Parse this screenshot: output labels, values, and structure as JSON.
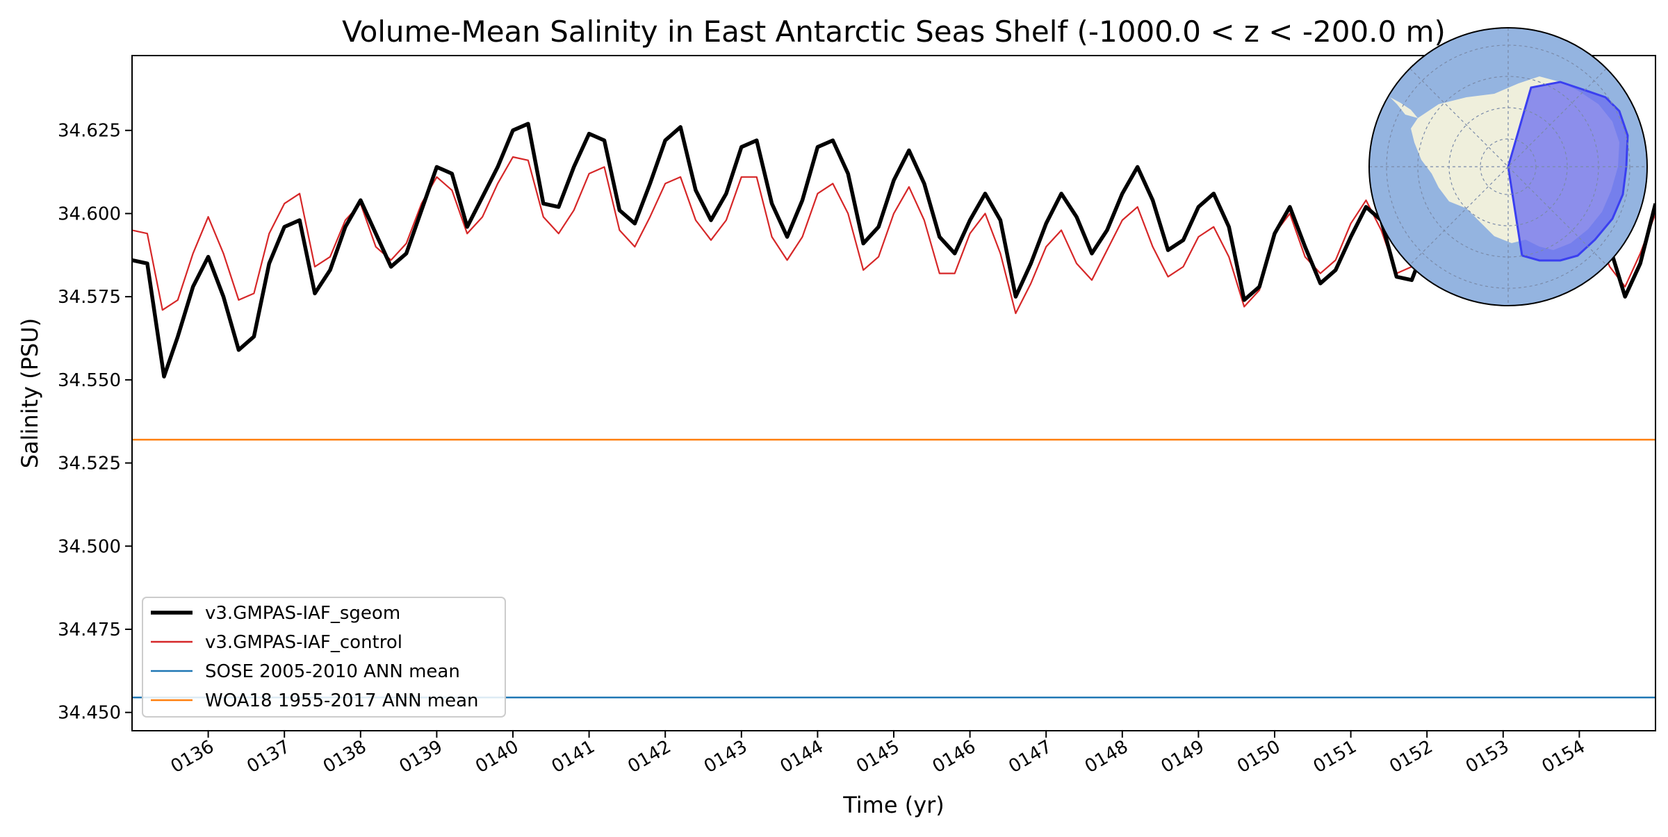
{
  "chart_data": {
    "type": "line",
    "title": "Volume-Mean Salinity in East Antarctic Seas Shelf (-1000.0 < z < -200.0 m)",
    "xlabel": "Time (yr)",
    "ylabel": "Salinity (PSU)",
    "xlim": [
      135.0,
      155.0
    ],
    "ylim": [
      34.4445,
      34.6475
    ],
    "x_ticks": [
      136,
      137,
      138,
      139,
      140,
      141,
      142,
      143,
      144,
      145,
      146,
      147,
      148,
      149,
      150,
      151,
      152,
      153,
      154
    ],
    "x_tick_labels": [
      "0136",
      "0137",
      "0138",
      "0139",
      "0140",
      "0141",
      "0142",
      "0143",
      "0144",
      "0145",
      "0146",
      "0147",
      "0148",
      "0149",
      "0150",
      "0151",
      "0152",
      "0153",
      "0154"
    ],
    "y_ticks": [
      34.45,
      34.475,
      34.5,
      34.525,
      34.55,
      34.575,
      34.6,
      34.625
    ],
    "y_tick_labels": [
      "34.450",
      "34.475",
      "34.500",
      "34.525",
      "34.550",
      "34.575",
      "34.600",
      "34.625"
    ],
    "grid": false,
    "legend_position": "lower-left",
    "series": [
      {
        "name": "v3.GMPAS-IAF_sgeom",
        "color": "#000000",
        "style": "thick",
        "x": [
          135.0,
          135.2,
          135.42,
          135.6,
          135.8,
          136.0,
          136.2,
          136.4,
          136.6,
          136.8,
          137.0,
          137.2,
          137.4,
          137.6,
          137.8,
          138.0,
          138.2,
          138.4,
          138.6,
          138.8,
          139.0,
          139.2,
          139.4,
          139.6,
          139.8,
          140.0,
          140.2,
          140.4,
          140.6,
          140.8,
          141.0,
          141.2,
          141.4,
          141.6,
          141.8,
          142.0,
          142.2,
          142.4,
          142.6,
          142.8,
          143.0,
          143.2,
          143.4,
          143.6,
          143.8,
          144.0,
          144.2,
          144.4,
          144.6,
          144.8,
          145.0,
          145.2,
          145.4,
          145.6,
          145.8,
          146.0,
          146.2,
          146.4,
          146.6,
          146.8,
          147.0,
          147.2,
          147.4,
          147.6,
          147.8,
          148.0,
          148.2,
          148.4,
          148.6,
          148.8,
          149.0,
          149.2,
          149.4,
          149.6,
          149.8,
          150.0,
          150.2,
          150.4,
          150.6,
          150.8,
          151.0,
          151.2,
          151.4,
          151.6,
          151.8,
          152.0,
          152.2,
          152.4,
          152.6,
          152.8,
          153.0,
          153.2,
          153.4,
          153.6,
          153.8,
          154.0,
          154.2,
          154.4,
          154.6,
          154.8,
          155.0
        ],
        "y": [
          34.586,
          34.585,
          34.551,
          34.563,
          34.578,
          34.587,
          34.575,
          34.559,
          34.563,
          34.585,
          34.596,
          34.598,
          34.576,
          34.583,
          34.596,
          34.604,
          34.594,
          34.584,
          34.588,
          34.601,
          34.614,
          34.612,
          34.596,
          34.605,
          34.614,
          34.625,
          34.627,
          34.603,
          34.602,
          34.614,
          34.624,
          34.622,
          34.601,
          34.597,
          34.609,
          34.622,
          34.626,
          34.607,
          34.598,
          34.606,
          34.62,
          34.622,
          34.603,
          34.593,
          34.604,
          34.62,
          34.622,
          34.612,
          34.591,
          34.596,
          34.61,
          34.619,
          34.609,
          34.593,
          34.588,
          34.598,
          34.606,
          34.598,
          34.575,
          34.585,
          34.597,
          34.606,
          34.599,
          34.588,
          34.595,
          34.606,
          34.614,
          34.604,
          34.589,
          34.592,
          34.602,
          34.606,
          34.596,
          34.574,
          34.578,
          34.594,
          34.602,
          34.59,
          34.579,
          34.583,
          34.593,
          34.602,
          34.598,
          34.581,
          34.58,
          34.592,
          34.6,
          34.603,
          34.594,
          34.585,
          34.596,
          34.605,
          34.601,
          34.588,
          34.58,
          34.59,
          34.598,
          34.59,
          34.575,
          34.585,
          34.603
        ]
      },
      {
        "name": "v3.GMPAS-IAF_control",
        "color": "#d62728",
        "style": "thin",
        "x": [
          135.0,
          135.2,
          135.4,
          135.6,
          135.8,
          136.0,
          136.2,
          136.4,
          136.6,
          136.8,
          137.0,
          137.2,
          137.4,
          137.6,
          137.8,
          138.0,
          138.2,
          138.4,
          138.6,
          138.8,
          139.0,
          139.2,
          139.4,
          139.6,
          139.8,
          140.0,
          140.2,
          140.4,
          140.6,
          140.8,
          141.0,
          141.2,
          141.4,
          141.6,
          141.8,
          142.0,
          142.2,
          142.4,
          142.6,
          142.8,
          143.0,
          143.2,
          143.4,
          143.6,
          143.8,
          144.0,
          144.2,
          144.4,
          144.6,
          144.8,
          145.0,
          145.2,
          145.4,
          145.6,
          145.8,
          146.0,
          146.2,
          146.4,
          146.6,
          146.8,
          147.0,
          147.2,
          147.4,
          147.6,
          147.8,
          148.0,
          148.2,
          148.4,
          148.6,
          148.8,
          149.0,
          149.2,
          149.4,
          149.6,
          149.8,
          150.0,
          150.2,
          150.4,
          150.6,
          150.8,
          151.0,
          151.2,
          151.4,
          151.6,
          151.8,
          152.0,
          152.2,
          152.4,
          152.6,
          152.8,
          153.0,
          153.2,
          153.4,
          153.6,
          153.8,
          154.0,
          154.2,
          154.4,
          154.6,
          154.8,
          155.0
        ],
        "y": [
          34.595,
          34.594,
          34.571,
          34.574,
          34.588,
          34.599,
          34.588,
          34.574,
          34.576,
          34.594,
          34.603,
          34.606,
          34.584,
          34.587,
          34.598,
          34.603,
          34.59,
          34.586,
          34.591,
          34.603,
          34.611,
          34.607,
          34.594,
          34.599,
          34.609,
          34.617,
          34.616,
          34.599,
          34.594,
          34.601,
          34.612,
          34.614,
          34.595,
          34.59,
          34.599,
          34.609,
          34.611,
          34.598,
          34.592,
          34.598,
          34.611,
          34.611,
          34.593,
          34.586,
          34.593,
          34.606,
          34.609,
          34.6,
          34.583,
          34.587,
          34.6,
          34.608,
          34.598,
          34.582,
          34.582,
          34.594,
          34.6,
          34.588,
          34.57,
          34.579,
          34.59,
          34.595,
          34.585,
          34.58,
          34.589,
          34.598,
          34.602,
          34.59,
          34.581,
          34.584,
          34.593,
          34.596,
          34.587,
          34.572,
          34.577,
          34.594,
          34.6,
          34.587,
          34.582,
          34.586,
          34.597,
          34.604,
          34.595,
          34.582,
          34.584,
          34.594,
          34.6,
          34.601,
          34.592,
          34.584,
          34.593,
          34.601,
          34.598,
          34.586,
          34.58,
          34.588,
          34.594,
          34.584,
          34.578,
          34.588,
          34.6
        ]
      },
      {
        "name": "SOSE 2005-2010 ANN mean",
        "color": "#1f77b4",
        "style": "hline",
        "y_value": 34.4545
      },
      {
        "name": "WOA18 1955-2017 ANN mean",
        "color": "#ff7f0e",
        "style": "hline",
        "y_value": 34.532
      }
    ]
  }
}
